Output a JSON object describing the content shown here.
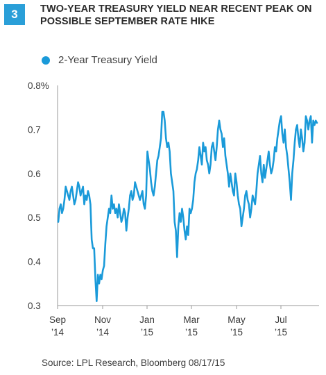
{
  "figure_number": "3",
  "chart_data": {
    "type": "line",
    "title": "TWO-YEAR TREASURY YIELD NEAR RECENT PEAK ON POSSIBLE SEPTEMBER RATE HIKE",
    "xlabel": "",
    "ylabel": "",
    "ylim": [
      0.3,
      0.8
    ],
    "y_ticks": [
      "0.8%",
      "0.7",
      "0.6",
      "0.5",
      "0.4",
      "0.3"
    ],
    "x_ticks": [
      {
        "month": "Sep",
        "year": "’14"
      },
      {
        "month": "Nov",
        "year": "’14"
      },
      {
        "month": "Jan",
        "year": "’15"
      },
      {
        "month": "Mar",
        "year": "’15"
      },
      {
        "month": "May",
        "year": "’15"
      },
      {
        "month": "Jul",
        "year": "’15"
      }
    ],
    "grid": false,
    "legend_position": "top-left",
    "series": [
      {
        "name": "2-Year Treasury Yield",
        "color": "#1a9ad9",
        "values": [
          0.49,
          0.52,
          0.53,
          0.51,
          0.52,
          0.54,
          0.57,
          0.56,
          0.55,
          0.54,
          0.56,
          0.57,
          0.55,
          0.53,
          0.54,
          0.56,
          0.58,
          0.57,
          0.55,
          0.56,
          0.57,
          0.53,
          0.55,
          0.54,
          0.56,
          0.55,
          0.53,
          0.45,
          0.43,
          0.43,
          0.36,
          0.31,
          0.37,
          0.35,
          0.37,
          0.36,
          0.38,
          0.39,
          0.44,
          0.48,
          0.5,
          0.52,
          0.51,
          0.55,
          0.52,
          0.53,
          0.51,
          0.52,
          0.5,
          0.53,
          0.51,
          0.49,
          0.5,
          0.52,
          0.51,
          0.47,
          0.5,
          0.52,
          0.55,
          0.56,
          0.54,
          0.55,
          0.58,
          0.57,
          0.56,
          0.55,
          0.54,
          0.55,
          0.56,
          0.53,
          0.52,
          0.55,
          0.65,
          0.63,
          0.61,
          0.58,
          0.56,
          0.55,
          0.57,
          0.6,
          0.63,
          0.64,
          0.66,
          0.68,
          0.74,
          0.74,
          0.72,
          0.68,
          0.66,
          0.67,
          0.65,
          0.6,
          0.58,
          0.56,
          0.49,
          0.47,
          0.41,
          0.48,
          0.51,
          0.49,
          0.52,
          0.5,
          0.47,
          0.45,
          0.48,
          0.46,
          0.52,
          0.51,
          0.52,
          0.54,
          0.58,
          0.6,
          0.61,
          0.63,
          0.66,
          0.64,
          0.62,
          0.67,
          0.65,
          0.66,
          0.63,
          0.62,
          0.6,
          0.62,
          0.66,
          0.67,
          0.65,
          0.63,
          0.66,
          0.7,
          0.72,
          0.7,
          0.69,
          0.66,
          0.68,
          0.64,
          0.62,
          0.6,
          0.57,
          0.6,
          0.58,
          0.56,
          0.55,
          0.6,
          0.58,
          0.55,
          0.53,
          0.52,
          0.48,
          0.5,
          0.52,
          0.55,
          0.56,
          0.54,
          0.53,
          0.5,
          0.52,
          0.55,
          0.54,
          0.53,
          0.56,
          0.6,
          0.62,
          0.64,
          0.6,
          0.58,
          0.62,
          0.59,
          0.61,
          0.63,
          0.65,
          0.62,
          0.6,
          0.61,
          0.63,
          0.66,
          0.65,
          0.68,
          0.7,
          0.72,
          0.73,
          0.69,
          0.67,
          0.7,
          0.66,
          0.64,
          0.61,
          0.58,
          0.54,
          0.6,
          0.63,
          0.67,
          0.7,
          0.71,
          0.68,
          0.66,
          0.7,
          0.68,
          0.65,
          0.67,
          0.73,
          0.72,
          0.7,
          0.72,
          0.73,
          0.67,
          0.72,
          0.71,
          0.72,
          0.715
        ]
      }
    ]
  },
  "legend": {
    "label": "2-Year Treasury Yield"
  },
  "source_note": "Source: LPL Research, Bloomberg   08/17/15"
}
